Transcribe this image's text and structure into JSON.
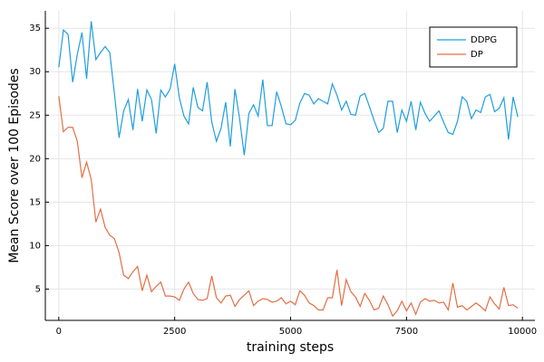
{
  "chart_data": {
    "type": "line",
    "xlabel": "training steps",
    "ylabel": "Mean Score over 100 Episodes",
    "x": [
      0,
      100,
      200,
      300,
      400,
      500,
      600,
      700,
      800,
      900,
      1000,
      1100,
      1200,
      1300,
      1400,
      1500,
      1600,
      1700,
      1800,
      1900,
      2000,
      2100,
      2200,
      2300,
      2400,
      2500,
      2600,
      2700,
      2800,
      2900,
      3000,
      3100,
      3200,
      3300,
      3400,
      3500,
      3600,
      3700,
      3800,
      3900,
      4000,
      4100,
      4200,
      4300,
      4400,
      4500,
      4600,
      4700,
      4800,
      4900,
      5000,
      5100,
      5200,
      5300,
      5400,
      5500,
      5600,
      5700,
      5800,
      5900,
      6000,
      6100,
      6200,
      6300,
      6400,
      6500,
      6600,
      6700,
      6800,
      6900,
      7000,
      7100,
      7200,
      7300,
      7400,
      7500,
      7600,
      7700,
      7800,
      7900,
      8000,
      8100,
      8200,
      8300,
      8400,
      8500,
      8600,
      8700,
      8800,
      8900,
      9000,
      9100,
      9200,
      9300,
      9400,
      9500,
      9600,
      9700,
      9800,
      9900
    ],
    "series": [
      {
        "name": "DDPG",
        "color": "#1f9ee0",
        "values": [
          30.5,
          34.8,
          34.3,
          28.8,
          32,
          34.5,
          29.2,
          35.8,
          31.4,
          32.2,
          32.9,
          32.2,
          27.5,
          22.4,
          25.5,
          26.8,
          23.3,
          28,
          24.3,
          27.9,
          26.8,
          22.9,
          27.9,
          27.1,
          28,
          30.9,
          27,
          24.9,
          24,
          28.2,
          25.9,
          25.5,
          28.8,
          24.2,
          22,
          23.5,
          26.5,
          21.4,
          28,
          24.6,
          20.4,
          25.2,
          26.2,
          24.9,
          29.1,
          23.8,
          23.8,
          27.7,
          26,
          24,
          23.9,
          24.4,
          26.4,
          27.5,
          27.3,
          26.3,
          26.9,
          26.6,
          26.3,
          28.6,
          27.3,
          25.6,
          26.6,
          25.1,
          25,
          27.2,
          27.5,
          26,
          24.4,
          23,
          23.5,
          26.6,
          26.6,
          23,
          25.6,
          24.3,
          26.6,
          23.3,
          26.5,
          25.2,
          24.3,
          24.9,
          25.5,
          24.2,
          23,
          22.8,
          24.3,
          27.1,
          26.6,
          24.6,
          25.6,
          25.3,
          27.1,
          27.4,
          25.4,
          25.8,
          27,
          22.2,
          27.1,
          24.8
        ]
      },
      {
        "name": "DP",
        "color": "#e26f46",
        "values": [
          27.2,
          23.1,
          23.6,
          23.6,
          22,
          17.8,
          19.6,
          17.6,
          12.7,
          14.2,
          12.1,
          11.2,
          10.8,
          9.2,
          6.6,
          6.2,
          7,
          7.6,
          4.8,
          6.6,
          4.7,
          5.3,
          5.8,
          4.2,
          4.2,
          4.1,
          3.7,
          5,
          5.8,
          4.5,
          3.8,
          3.7,
          3.9,
          6.5,
          4,
          3.4,
          4.2,
          4.3,
          3,
          3.8,
          4.3,
          4.8,
          3.1,
          3.6,
          3.9,
          3.8,
          3.5,
          3.6,
          4,
          3.3,
          3.6,
          3.2,
          4.8,
          4.3,
          3.4,
          3.1,
          2.6,
          2.6,
          4,
          4,
          7.2,
          3.1,
          6.1,
          4.7,
          4.1,
          3,
          4.5,
          3.7,
          2.6,
          2.8,
          4.2,
          3.2,
          1.9,
          2.5,
          3.6,
          2.5,
          3.4,
          2.1,
          3.5,
          3.9,
          3.6,
          3.7,
          3.4,
          3.5,
          2.6,
          5.7,
          2.9,
          3.1,
          2.6,
          3,
          3.4,
          3,
          2.5,
          4.1,
          3.3,
          2.7,
          5.2,
          3.1,
          3.2,
          2.8
        ]
      }
    ],
    "xlim": [
      -290,
      10270
    ],
    "ylim": [
      1.4,
      37
    ],
    "xticks": [
      0,
      2500,
      5000,
      7500,
      10000
    ],
    "yticks": [
      5,
      10,
      15,
      20,
      25,
      30,
      35
    ],
    "grid": true,
    "legend": "top-right"
  }
}
